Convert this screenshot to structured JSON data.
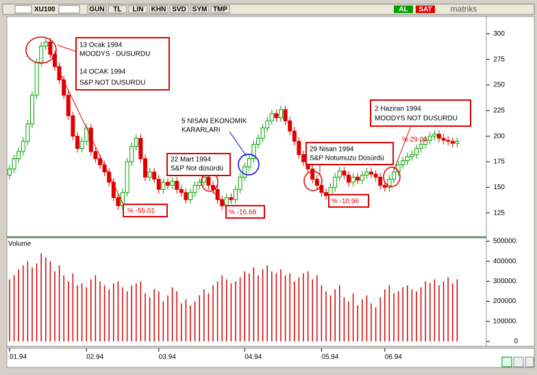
{
  "toolbar": {
    "symbol": "XU100",
    "buttons": [
      "GUN",
      "TL",
      "LIN",
      "KHN",
      "SVD",
      "SYM",
      "TMP"
    ],
    "buy": "AL",
    "sell": "SAT",
    "brand": "matriks"
  },
  "annotations": {
    "box1": [
      "13 Ocak 1994",
      "MOODYS - DUSURDU",
      "14 OCAK 1994",
      "S&P NOT DUSURDU"
    ],
    "pct1": "% -55.01",
    "box2": [
      "5 NISAN EKONOMIK",
      "KARARLARI"
    ],
    "box3": [
      "22 Mart 1994",
      "S&P Not düsürdü"
    ],
    "pct3": "% -16.68",
    "box4": [
      "29 Nisan 1994",
      "S&P Notumuzu Düsürdü"
    ],
    "pct4": "% -10.96",
    "box5": [
      "2 Haziran 1994",
      "MOODYS NOT DUSURDU"
    ],
    "pct5": "% 29.00"
  },
  "chart_data": {
    "type": "candlestick",
    "title": "XU100",
    "categories": [
      "01.94",
      null,
      null,
      null,
      null,
      null,
      null,
      null,
      null,
      null,
      null,
      null,
      null,
      null,
      null,
      null,
      null,
      "02.94",
      null,
      null,
      null,
      null,
      null,
      null,
      null,
      null,
      null,
      null,
      null,
      null,
      null,
      null,
      null,
      "03.94",
      null,
      null,
      null,
      null,
      null,
      null,
      null,
      null,
      null,
      null,
      null,
      null,
      null,
      null,
      null,
      null,
      null,
      null,
      "04.94",
      null,
      null,
      null,
      null,
      null,
      null,
      null,
      null,
      null,
      null,
      null,
      null,
      null,
      null,
      null,
      null,
      "05.94",
      null,
      null,
      null,
      null,
      null,
      null,
      null,
      null,
      null,
      null,
      null,
      null,
      null,
      "06.94",
      null,
      null,
      null,
      null,
      null,
      null,
      null,
      null,
      null,
      null,
      null,
      null,
      null,
      null,
      null,
      null
    ],
    "open": [
      162,
      168,
      178,
      185,
      195,
      212,
      240,
      272,
      288,
      292,
      280,
      268,
      255,
      240,
      220,
      200,
      188,
      195,
      208,
      185,
      178,
      172,
      165,
      155,
      140,
      132,
      145,
      175,
      190,
      198,
      178,
      160,
      165,
      158,
      148,
      155,
      152,
      156,
      148,
      145,
      138,
      145,
      152,
      155,
      160,
      152,
      148,
      138,
      132,
      140,
      138,
      148,
      160,
      170,
      178,
      192,
      198,
      208,
      215,
      222,
      218,
      226,
      215,
      205,
      195,
      182,
      175,
      168,
      158,
      152,
      145,
      142,
      150,
      160,
      166,
      162,
      155,
      160,
      157,
      162,
      165,
      163,
      160,
      152,
      150,
      158,
      165,
      172,
      176,
      180,
      182,
      188,
      192,
      196,
      200,
      202,
      198,
      196,
      195,
      193
    ],
    "high": [
      172,
      182,
      189,
      199,
      216,
      244,
      276,
      292,
      296,
      296,
      284,
      272,
      259,
      244,
      224,
      204,
      199,
      212,
      212,
      189,
      182,
      176,
      169,
      159,
      144,
      149,
      179,
      194,
      202,
      202,
      182,
      169,
      169,
      162,
      159,
      159,
      160,
      160,
      152,
      149,
      149,
      156,
      159,
      164,
      164,
      156,
      152,
      142,
      144,
      144,
      152,
      164,
      174,
      182,
      196,
      202,
      212,
      219,
      226,
      226,
      230,
      230,
      219,
      209,
      199,
      186,
      179,
      172,
      162,
      156,
      149,
      154,
      164,
      170,
      170,
      166,
      164,
      164,
      166,
      169,
      169,
      167,
      164,
      156,
      162,
      169,
      176,
      180,
      184,
      186,
      192,
      196,
      200,
      204,
      206,
      206,
      202,
      200,
      199,
      199
    ],
    "low": [
      158,
      164,
      174,
      181,
      191,
      208,
      236,
      268,
      284,
      276,
      264,
      251,
      236,
      216,
      196,
      184,
      184,
      191,
      181,
      174,
      168,
      161,
      151,
      136,
      128,
      128,
      141,
      171,
      186,
      174,
      156,
      156,
      154,
      144,
      144,
      148,
      148,
      144,
      141,
      134,
      134,
      141,
      148,
      151,
      148,
      144,
      134,
      128,
      128,
      134,
      134,
      144,
      156,
      166,
      174,
      188,
      194,
      204,
      211,
      214,
      214,
      211,
      201,
      191,
      178,
      171,
      164,
      154,
      148,
      141,
      138,
      138,
      146,
      156,
      158,
      151,
      151,
      153,
      153,
      158,
      159,
      156,
      148,
      146,
      146,
      154,
      161,
      168,
      172,
      176,
      178,
      184,
      188,
      192,
      196,
      194,
      192,
      191,
      189,
      189
    ],
    "close": [
      168,
      178,
      185,
      195,
      212,
      240,
      272,
      288,
      292,
      280,
      268,
      255,
      240,
      220,
      200,
      188,
      195,
      208,
      185,
      178,
      172,
      165,
      155,
      140,
      132,
      145,
      175,
      190,
      198,
      178,
      160,
      165,
      158,
      148,
      155,
      152,
      156,
      148,
      145,
      138,
      145,
      152,
      155,
      160,
      152,
      148,
      138,
      132,
      140,
      138,
      148,
      160,
      170,
      178,
      192,
      198,
      208,
      215,
      222,
      218,
      226,
      215,
      205,
      195,
      182,
      175,
      168,
      158,
      152,
      145,
      142,
      150,
      160,
      166,
      162,
      155,
      160,
      157,
      162,
      165,
      163,
      160,
      152,
      150,
      158,
      165,
      172,
      176,
      180,
      182,
      188,
      192,
      196,
      200,
      202,
      198,
      196,
      195,
      193,
      195
    ],
    "up_color": "#00a000",
    "down_color": "#e00000",
    "ylim": [
      102,
      325
    ],
    "yticks": [
      125,
      150,
      175,
      200,
      225,
      250,
      275,
      300
    ],
    "volume": {
      "label": "Volume",
      "color": "#d00000",
      "ylim": [
        0,
        517000
      ],
      "yticks": [
        0,
        {
          "value": 100000,
          "label": "100000."
        },
        {
          "value": 200000,
          "label": "200000."
        },
        {
          "value": 300000,
          "label": "300000."
        },
        {
          "value": 400000,
          "label": "400000."
        },
        {
          "value": 500000,
          "label": "500000."
        }
      ],
      "values": [
        310000,
        330000,
        360000,
        380000,
        400000,
        370000,
        390000,
        440000,
        420000,
        400000,
        350000,
        380000,
        330000,
        300000,
        340000,
        280000,
        290000,
        270000,
        310000,
        330000,
        300000,
        280000,
        260000,
        290000,
        300000,
        270000,
        250000,
        280000,
        290000,
        300000,
        240000,
        220000,
        260000,
        250000,
        200000,
        230000,
        270000,
        250000,
        190000,
        210000,
        180000,
        200000,
        230000,
        260000,
        240000,
        280000,
        300000,
        330000,
        310000,
        290000,
        300000,
        320000,
        350000,
        340000,
        370000,
        330000,
        360000,
        380000,
        350000,
        340000,
        360000,
        330000,
        340000,
        300000,
        320000,
        340000,
        350000,
        310000,
        330000,
        280000,
        250000,
        230000,
        260000,
        280000,
        220000,
        200000,
        240000,
        180000,
        210000,
        230000,
        190000,
        170000,
        220000,
        260000,
        280000,
        240000,
        250000,
        270000,
        280000,
        260000,
        250000,
        270000,
        300000,
        290000,
        310000,
        280000,
        300000,
        320000,
        290000,
        310000
      ]
    }
  }
}
